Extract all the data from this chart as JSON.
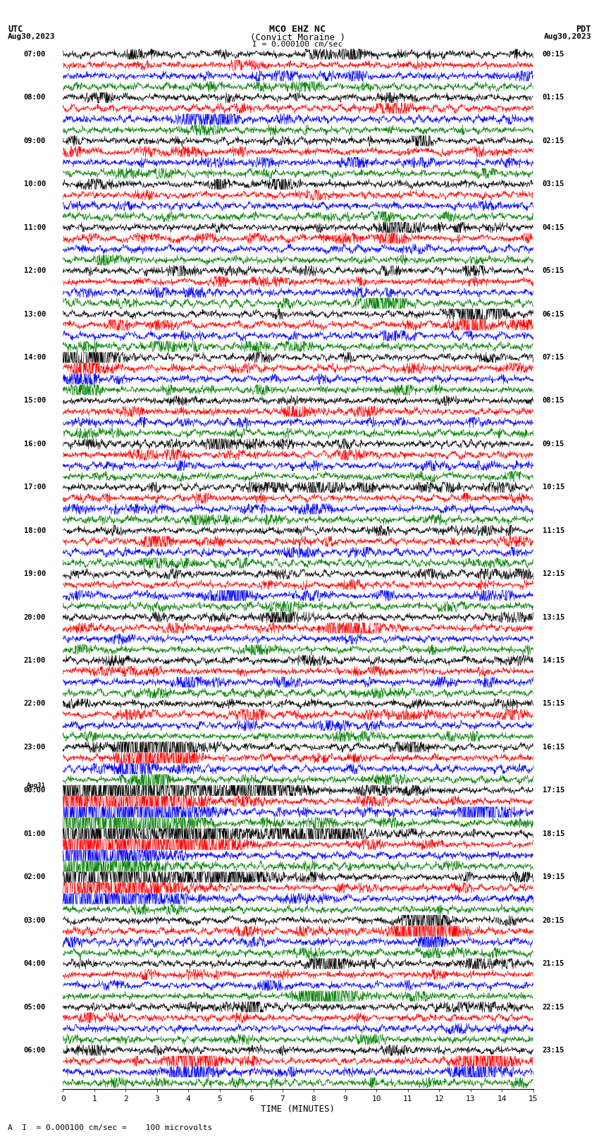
{
  "title_line1": "MCO EHZ NC",
  "title_line2": "(Convict Moraine )",
  "scale_text": "I = 0.000100 cm/sec",
  "footer_text": "A  I  = 0.000100 cm/sec =    100 microvolts",
  "xlabel": "TIME (MINUTES)",
  "left_label": "UTC",
  "left_date": "Aug30,2023",
  "right_label": "PDT",
  "right_date": "Aug30,2023",
  "utc_hour_labels": [
    "07:00",
    "08:00",
    "09:00",
    "10:00",
    "11:00",
    "12:00",
    "13:00",
    "14:00",
    "15:00",
    "16:00",
    "17:00",
    "18:00",
    "19:00",
    "20:00",
    "21:00",
    "22:00",
    "23:00",
    "00:00",
    "01:00",
    "02:00",
    "03:00",
    "04:00",
    "05:00",
    "06:00"
  ],
  "pdt_hour_labels": [
    "00:15",
    "01:15",
    "02:15",
    "03:15",
    "04:15",
    "05:15",
    "06:15",
    "07:15",
    "08:15",
    "09:15",
    "10:15",
    "11:15",
    "12:15",
    "13:15",
    "14:15",
    "15:15",
    "16:15",
    "17:15",
    "18:15",
    "19:15",
    "20:15",
    "21:15",
    "22:15",
    "23:15"
  ],
  "aug31_utc_hour_index": 17,
  "trace_colors": [
    "black",
    "red",
    "blue",
    "green"
  ],
  "n_hours": 24,
  "traces_per_hour": 4,
  "n_minutes": 15,
  "background_color": "white",
  "trace_linewidth": 0.45,
  "grid_color": "#999999",
  "amplitude_scale": 0.38,
  "noise_base": 0.08,
  "pts_per_minute": 100
}
